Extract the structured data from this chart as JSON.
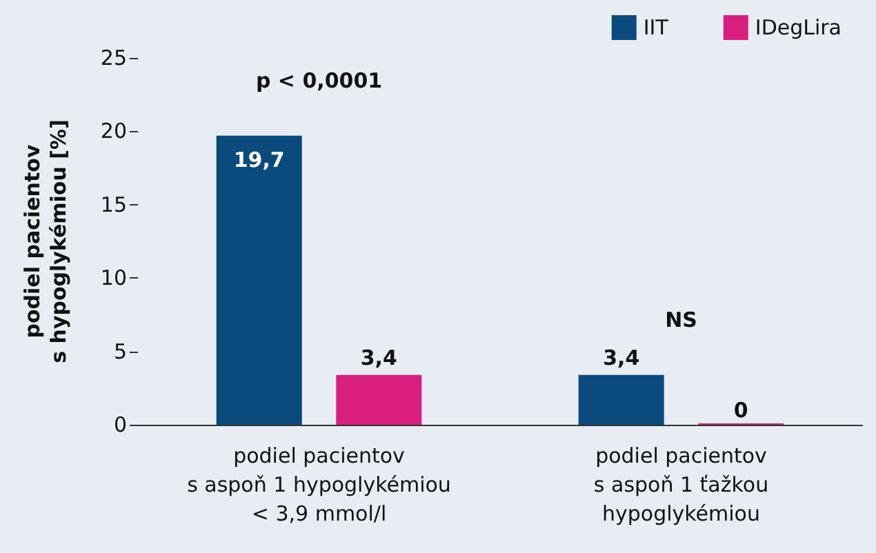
{
  "chart_data": {
    "type": "bar",
    "ylabel": "podiel pacientov\ns hypoglykémiou [%]",
    "categories": [
      "podiel pacientov\ns aspoň 1 hypoglykémiou\n< 3,9 mmol/l",
      "podiel pacientov\ns aspoň 1 ťažkou\nhypoglykémiou"
    ],
    "series": [
      {
        "name": "IIT",
        "color": "#0b4a7d",
        "values": [
          19.7,
          3.4
        ],
        "value_labels": [
          "19,7",
          "3,4"
        ]
      },
      {
        "name": "IDegLira",
        "color": "#d81f7f",
        "values": [
          3.4,
          0
        ],
        "value_labels": [
          "3,4",
          "0"
        ]
      }
    ],
    "ylim": [
      0,
      25
    ],
    "yticks": [
      0,
      5,
      10,
      15,
      20,
      25
    ],
    "grid": false,
    "legend": "top right",
    "annotations": [
      "p < 0,0001",
      "NS"
    ]
  }
}
